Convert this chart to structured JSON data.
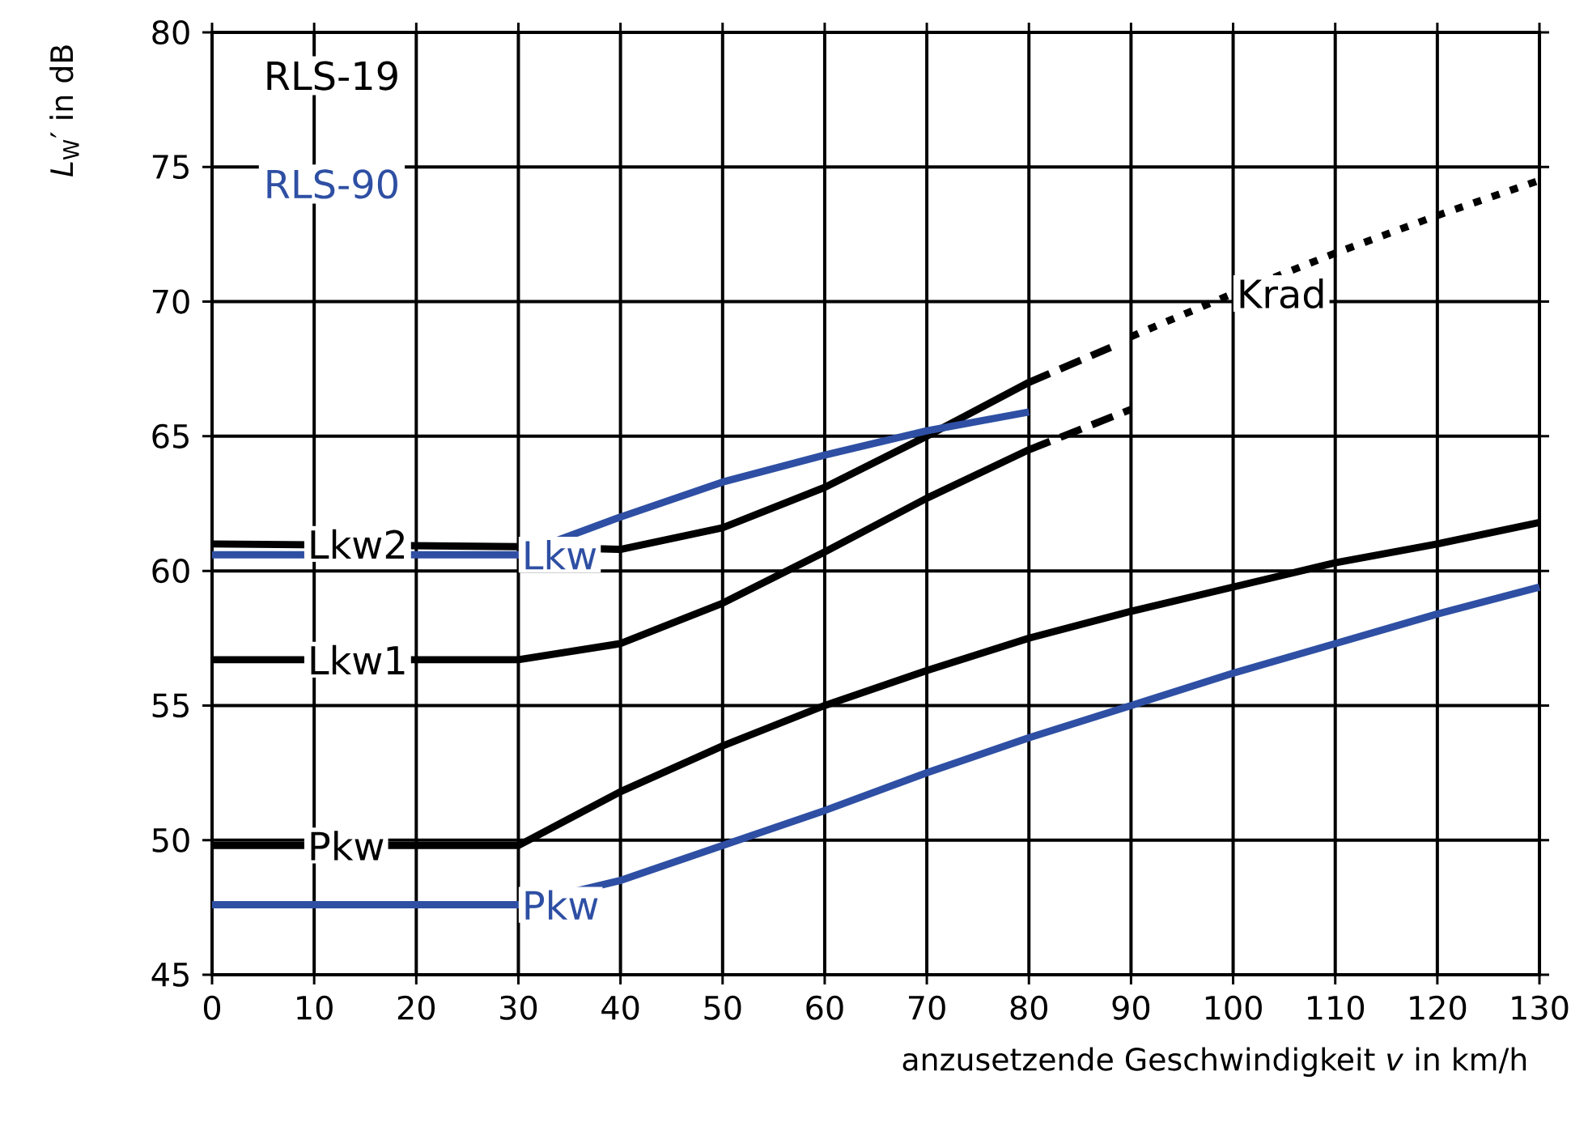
{
  "chart_data": {
    "type": "line",
    "xlabel": "anzusetzende Geschwindigkeit *v* in km/h",
    "ylabel": "*L*$_{W}$′ in dB",
    "xlim": [
      0,
      130
    ],
    "ylim": [
      45,
      80
    ],
    "xticks": [
      0,
      10,
      20,
      30,
      40,
      50,
      60,
      70,
      80,
      90,
      100,
      110,
      120,
      130
    ],
    "yticks": [
      45,
      50,
      55,
      60,
      65,
      70,
      75,
      80
    ],
    "grid": true,
    "annotations": [
      "RLS-19",
      "RLS-90"
    ],
    "series": [
      {
        "name": "Pkw",
        "color": "#000000",
        "x": [
          0,
          30,
          40,
          50,
          60,
          70,
          80,
          90,
          100,
          110,
          120,
          130
        ],
        "values": [
          49.8,
          49.8,
          51.8,
          53.5,
          55,
          56.3,
          57.5,
          58.5,
          59.4,
          60.3,
          61,
          61.8
        ]
      },
      {
        "name": "Pkw",
        "color": "#2e4fa3",
        "x": [
          0,
          30,
          40,
          50,
          60,
          70,
          80,
          90,
          100,
          110,
          120,
          130
        ],
        "values": [
          47.6,
          47.6,
          48.5,
          49.8,
          51.1,
          52.5,
          53.8,
          55,
          56.2,
          57.3,
          58.4,
          59.4
        ]
      },
      {
        "name": "Lkw1",
        "color": "#000000",
        "x": [
          0,
          30,
          40,
          50,
          60,
          70,
          80
        ],
        "values": [
          56.7,
          56.7,
          57.3,
          58.8,
          60.7,
          62.7,
          64.5
        ]
      },
      {
        "color": "#000000",
        "line_style": "dashed",
        "x": [
          80,
          90
        ],
        "values": [
          64.5,
          66
        ]
      },
      {
        "name": "Lkw2",
        "color": "#000000",
        "x": [
          0,
          30,
          40,
          50,
          60,
          70,
          80
        ],
        "values": [
          61,
          60.9,
          60.8,
          61.6,
          63.1,
          65,
          67
        ]
      },
      {
        "color": "#000000",
        "line_style": "dashed",
        "x": [
          80,
          88
        ],
        "values": [
          67,
          68.3
        ]
      },
      {
        "name": "Lkw",
        "color": "#2e4fa3",
        "x": [
          0,
          30,
          40,
          50,
          60,
          70,
          80
        ],
        "values": [
          60.6,
          60.6,
          62,
          63.3,
          64.3,
          65.2,
          65.9
        ]
      },
      {
        "name": "Krad",
        "color": "#000000",
        "line_style": "dotted",
        "x": [
          90,
          100,
          110,
          120,
          130
        ],
        "values": [
          68.7,
          70.3,
          71.8,
          73.2,
          74.5
        ]
      }
    ]
  }
}
